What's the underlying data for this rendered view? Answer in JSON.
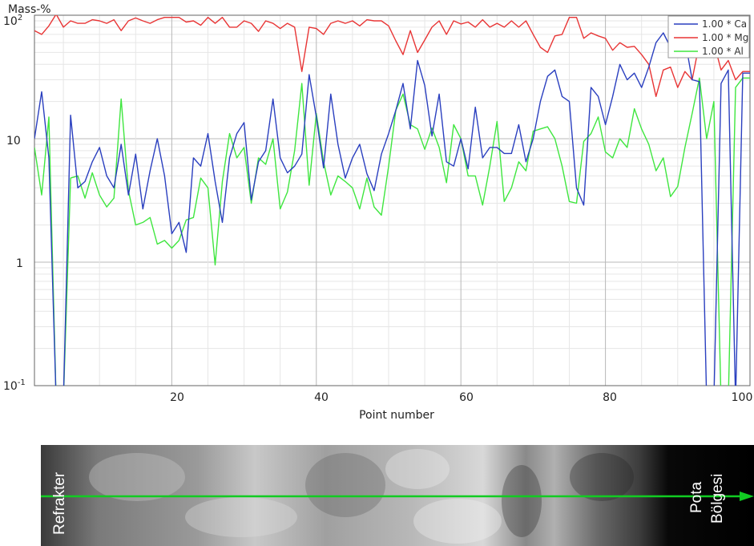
{
  "chart_data": {
    "type": "line",
    "ylabel": "Mass-%",
    "xlabel": "Point number",
    "yscale": "log",
    "ylim": [
      0.1,
      100
    ],
    "xlim": [
      1,
      100
    ],
    "xticks": [
      "20",
      "40",
      "60",
      "80",
      "100"
    ],
    "yticks": [
      "10",
      "1"
    ],
    "ytick_exp": {
      "top_base": "10",
      "top_exp": "2",
      "bottom_base": "10",
      "bottom_exp": "-1"
    },
    "grid": true,
    "legend_position": "top-right",
    "x": [
      1,
      2,
      3,
      4,
      5,
      6,
      7,
      8,
      9,
      10,
      11,
      12,
      13,
      14,
      15,
      16,
      17,
      18,
      19,
      20,
      21,
      22,
      23,
      24,
      25,
      26,
      27,
      28,
      29,
      30,
      31,
      32,
      33,
      34,
      35,
      36,
      37,
      38,
      39,
      40,
      41,
      42,
      43,
      44,
      45,
      46,
      47,
      48,
      49,
      50,
      51,
      52,
      53,
      54,
      55,
      56,
      57,
      58,
      59,
      60,
      61,
      62,
      63,
      64,
      65,
      66,
      67,
      68,
      69,
      70,
      71,
      72,
      73,
      74,
      75,
      76,
      77,
      78,
      79,
      80,
      81,
      82,
      83,
      84,
      85,
      86,
      87,
      88,
      89,
      90,
      91,
      92,
      93,
      94,
      95,
      96,
      97,
      98,
      99,
      100
    ],
    "series": [
      {
        "name": "1.00 * Ca",
        "color": "#2a3fbf",
        "values": [
          10,
          24,
          7,
          0.05,
          0.05,
          15.5,
          4,
          4.5,
          6.5,
          8.5,
          5,
          4,
          9,
          3.5,
          7.5,
          2.7,
          5.5,
          10,
          5,
          1.7,
          2.1,
          1.2,
          7,
          6,
          11,
          4.5,
          2.1,
          7,
          11,
          13.5,
          3.2,
          6.5,
          8,
          21,
          7,
          5.3,
          6,
          7.5,
          33,
          15,
          5.8,
          23,
          9,
          4.8,
          7,
          9,
          5.2,
          3.8,
          7.5,
          11,
          17,
          28,
          12,
          43,
          27,
          10.5,
          23,
          6.5,
          6,
          10,
          5.7,
          18,
          7,
          8.5,
          8.5,
          7.6,
          7.6,
          13,
          6.5,
          10,
          20,
          32,
          36,
          22,
          20,
          4,
          2.9,
          26,
          22,
          13,
          22,
          40,
          30,
          34,
          26,
          38,
          60,
          72,
          55,
          48,
          64,
          30,
          29,
          0.05,
          0.05,
          28,
          36,
          0.05,
          34,
          34
        ]
      },
      {
        "name": "1.00 * Mg",
        "color": "#e83535",
        "values": [
          75,
          70,
          82,
          102,
          80,
          90,
          86,
          86,
          92,
          90,
          86,
          92,
          75,
          90,
          95,
          90,
          86,
          92,
          96,
          96,
          96,
          88,
          90,
          83,
          96,
          86,
          96,
          80,
          80,
          90,
          86,
          74,
          90,
          86,
          78,
          86,
          80,
          35,
          80,
          78,
          70,
          86,
          90,
          86,
          90,
          82,
          92,
          90,
          90,
          82,
          62,
          48,
          75,
          50,
          63,
          80,
          90,
          70,
          90,
          85,
          88,
          80,
          92,
          80,
          86,
          80,
          90,
          80,
          90,
          70,
          55,
          50,
          68,
          70,
          96,
          96,
          65,
          72,
          68,
          65,
          52,
          60,
          55,
          56,
          48,
          40,
          22,
          36,
          38,
          26,
          35,
          30,
          60,
          46,
          60,
          36,
          43,
          30,
          35,
          35
        ]
      },
      {
        "name": "1.00 * Al",
        "color": "#3fe63f",
        "values": [
          8.5,
          3.5,
          15,
          0.05,
          0.05,
          4.8,
          5,
          3.3,
          5.3,
          3.5,
          2.8,
          3.3,
          21,
          3.8,
          2,
          2.1,
          2.3,
          1.4,
          1.5,
          1.3,
          1.5,
          2.2,
          2.3,
          4.8,
          4,
          0.95,
          4.5,
          11,
          7,
          8.5,
          3,
          7,
          6.2,
          10,
          2.7,
          3.7,
          8,
          28,
          4.2,
          16,
          6.5,
          3.5,
          5,
          4.5,
          4,
          2.7,
          4.8,
          2.8,
          2.4,
          6,
          17,
          23,
          13,
          12,
          8.2,
          12.2,
          8.5,
          4.4,
          13,
          10,
          5,
          5,
          2.9,
          6,
          13.8,
          3.1,
          4,
          6.5,
          5.5,
          11.5,
          12,
          12.5,
          10,
          6,
          3.1,
          3,
          9.5,
          11,
          15,
          7.8,
          7,
          10,
          8.5,
          17.5,
          12,
          9,
          5.5,
          7,
          3.4,
          4.1,
          8.5,
          16,
          31,
          10,
          20,
          0.05,
          0.05,
          26,
          31,
          31
        ]
      }
    ]
  },
  "image_labels": {
    "left": "Refrakter",
    "right_line1": "Pota",
    "right_line2": "Bölgesi"
  },
  "colors": {
    "profile_line": "#11cc22"
  }
}
